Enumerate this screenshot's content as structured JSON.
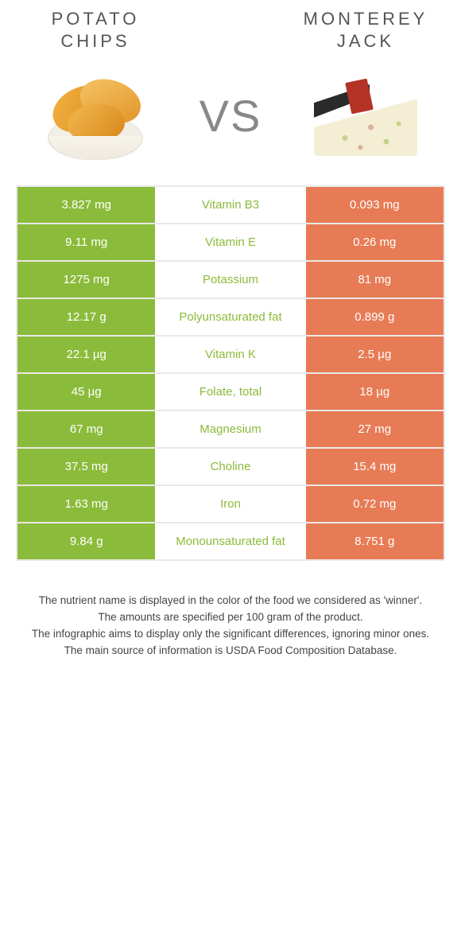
{
  "colors": {
    "green": "#8bbb3a",
    "orange": "#e77b55",
    "background": "#ffffff",
    "title_text": "#555555",
    "footer_text": "#444444",
    "border": "#e9e9e9"
  },
  "header": {
    "left_title": "POTATO\nCHIPS",
    "right_title": "MONTEREY\nJACK",
    "vs_text": "VS",
    "title_fontsize": 22,
    "title_letter_spacing": 4,
    "vs_fontsize": 56
  },
  "table": {
    "cell_fontsize": 15,
    "rows": [
      {
        "nutrient": "Vitamin B3",
        "left": "3.827 mg",
        "right": "0.093 mg",
        "winner": "left"
      },
      {
        "nutrient": "Vitamin E",
        "left": "9.11 mg",
        "right": "0.26 mg",
        "winner": "left"
      },
      {
        "nutrient": "Potassium",
        "left": "1275 mg",
        "right": "81 mg",
        "winner": "left"
      },
      {
        "nutrient": "Polyunsaturated fat",
        "left": "12.17 g",
        "right": "0.899 g",
        "winner": "left"
      },
      {
        "nutrient": "Vitamin K",
        "left": "22.1 µg",
        "right": "2.5 µg",
        "winner": "left"
      },
      {
        "nutrient": "Folate, total",
        "left": "45 µg",
        "right": "18 µg",
        "winner": "left"
      },
      {
        "nutrient": "Magnesium",
        "left": "67 mg",
        "right": "27 mg",
        "winner": "left"
      },
      {
        "nutrient": "Choline",
        "left": "37.5 mg",
        "right": "15.4 mg",
        "winner": "left"
      },
      {
        "nutrient": "Iron",
        "left": "1.63 mg",
        "right": "0.72 mg",
        "winner": "left"
      },
      {
        "nutrient": "Monounsaturated fat",
        "left": "9.84 g",
        "right": "8.751 g",
        "winner": "left"
      }
    ]
  },
  "footer": {
    "line1": "The nutrient name is displayed in the color of the food we considered as 'winner'.",
    "line2": "The amounts are specified per 100 gram of the product.",
    "line3": "The infographic aims to display only the significant differences, ignoring minor ones.",
    "line4": "The main source of information is USDA Food Composition Database.",
    "fontsize": 13.5
  }
}
